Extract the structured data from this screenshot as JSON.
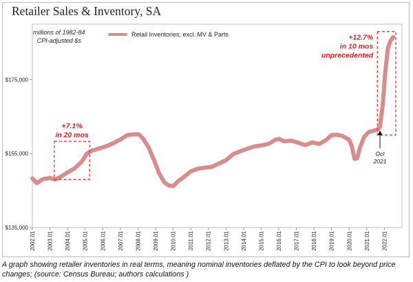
{
  "chart_data": {
    "type": "line",
    "title": "Retailer Sales & Inventory, SA",
    "units_label": [
      "millions of 1982-84",
      "CPI-adjusted $s"
    ],
    "series": [
      {
        "name": "Retail Inventories; excl. MV & Parts",
        "color": "#d98c8c",
        "points": [
          [
            2002.0,
            148.3
          ],
          [
            2002.25,
            147.0
          ],
          [
            2002.6,
            148.1
          ],
          [
            2003.0,
            148.4
          ],
          [
            2003.3,
            148.0
          ],
          [
            2003.6,
            148.7
          ],
          [
            2004.0,
            149.9
          ],
          [
            2004.4,
            151.0
          ],
          [
            2004.8,
            152.8
          ],
          [
            2005.1,
            155.0
          ],
          [
            2005.4,
            155.8
          ],
          [
            2005.8,
            156.4
          ],
          [
            2006.2,
            157.0
          ],
          [
            2006.5,
            157.6
          ],
          [
            2007.0,
            158.8
          ],
          [
            2007.4,
            160.0
          ],
          [
            2007.8,
            160.2
          ],
          [
            2008.05,
            160.2
          ],
          [
            2008.3,
            159.0
          ],
          [
            2008.6,
            156.7
          ],
          [
            2008.9,
            153.4
          ],
          [
            2009.2,
            149.7
          ],
          [
            2009.5,
            147.2
          ],
          [
            2009.75,
            146.4
          ],
          [
            2010.0,
            146.2
          ],
          [
            2010.3,
            147.6
          ],
          [
            2010.7,
            149.0
          ],
          [
            2011.0,
            150.2
          ],
          [
            2011.4,
            150.9
          ],
          [
            2011.8,
            151.2
          ],
          [
            2012.2,
            151.4
          ],
          [
            2012.6,
            152.3
          ],
          [
            2013.0,
            153.2
          ],
          [
            2013.4,
            154.8
          ],
          [
            2013.8,
            155.6
          ],
          [
            2014.2,
            156.3
          ],
          [
            2014.6,
            156.9
          ],
          [
            2015.0,
            157.2
          ],
          [
            2015.4,
            157.6
          ],
          [
            2015.8,
            158.7
          ],
          [
            2016.0,
            159.0
          ],
          [
            2016.3,
            158.3
          ],
          [
            2016.7,
            158.5
          ],
          [
            2017.0,
            158.1
          ],
          [
            2017.5,
            157.3
          ],
          [
            2017.9,
            158.0
          ],
          [
            2018.3,
            157.6
          ],
          [
            2018.7,
            158.7
          ],
          [
            2019.0,
            160.0
          ],
          [
            2019.3,
            160.1
          ],
          [
            2019.6,
            159.8
          ],
          [
            2020.0,
            158.7
          ],
          [
            2020.15,
            157.0
          ],
          [
            2020.3,
            153.6
          ],
          [
            2020.45,
            153.7
          ],
          [
            2020.6,
            156.4
          ],
          [
            2020.85,
            159.5
          ],
          [
            2021.1,
            160.8
          ],
          [
            2021.4,
            161.2
          ],
          [
            2021.6,
            161.5
          ],
          [
            2021.75,
            162.2
          ],
          [
            2021.9,
            168.0
          ],
          [
            2022.05,
            177.0
          ],
          [
            2022.2,
            183.5
          ],
          [
            2022.35,
            185.5
          ],
          [
            2022.5,
            186.5
          ]
        ]
      }
    ],
    "x_range": [
      2002.0,
      2023.0
    ],
    "ylim": [
      135000,
      190000
    ],
    "y_ticks": [
      135000,
      155000,
      175000
    ],
    "y_tick_labels": [
      "$135,000",
      "$155,000",
      "$175,000"
    ],
    "x_tick_labels": [
      "2002.01",
      "2003.01",
      "2004.01",
      "2005.01",
      "2006.01",
      "2007.01",
      "2008.01",
      "2009.01",
      "2010.01",
      "2011.01",
      "2012.01",
      "2013.01",
      "2014.01",
      "2015.01",
      "2016.01",
      "2017.01",
      "2018.01",
      "2019.01",
      "2020.01",
      "2021.01",
      "2022.01"
    ],
    "annotations": [
      {
        "label_lines": [
          "+7.1%",
          "in 20 mos"
        ],
        "x_range": [
          2003.25,
          2005.25
        ],
        "y_range": [
          148000,
          158300
        ]
      },
      {
        "label_lines": [
          "+12.7%",
          "in 10 mos",
          "unprecedented"
        ],
        "x_range": [
          2021.6,
          2022.65
        ],
        "y_range": [
          160000,
          188000
        ]
      }
    ],
    "marker": {
      "x": 2021.75,
      "y": 162000,
      "label_lines": [
        "Oct",
        "2021"
      ]
    }
  },
  "caption": "A graph showing retailer inventories in real terms, meaning nominal inventories deflated by the CPI to look beyond price changes; (source: Census Bureau; authors calculations )"
}
